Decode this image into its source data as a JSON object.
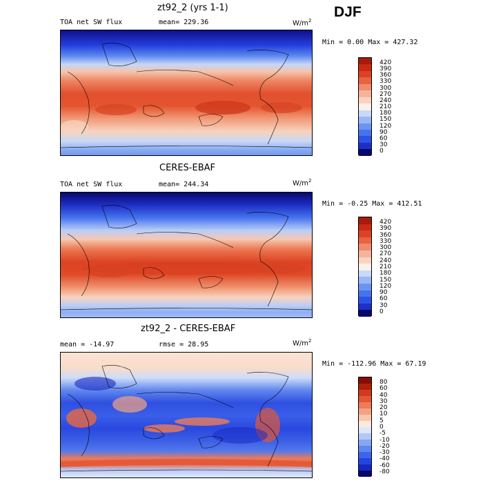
{
  "season": "DJF",
  "colors": {
    "flux_scale": [
      "#08086b",
      "#1e2fc7",
      "#2b52e6",
      "#4674ef",
      "#6b94f2",
      "#9bb7f6",
      "#c8daf9",
      "#f9f1ea",
      "#f8d4c0",
      "#f7b39a",
      "#f28b6e",
      "#e8633f",
      "#dc4226",
      "#c82a16",
      "#a81a0b"
    ],
    "diff_scale": [
      "#08086b",
      "#1628c3",
      "#2545e2",
      "#3b66ec",
      "#5e87f0",
      "#86a7f4",
      "#b3c8f8",
      "#dce7fb",
      "#fbe9dd",
      "#f8c7ae",
      "#f4a283",
      "#ee7c58",
      "#e35736",
      "#d13a1f",
      "#b11f0c",
      "#830f05"
    ]
  },
  "chart_data": [
    {
      "type": "heatmap",
      "title": "zt92_2 (yrs 1-1)",
      "variable_label": "TOA net SW flux",
      "stat_text": "mean= 229.36",
      "units_text": "W/m",
      "units_exp": "2",
      "minmax_text": "Min =    0.00 Max = 427.32",
      "colorbar_ticks": [
        "420",
        "390",
        "360",
        "330",
        "300",
        "270",
        "240",
        "210",
        "180",
        "150",
        "120",
        "90",
        "60",
        "30",
        "0"
      ]
    },
    {
      "type": "heatmap",
      "title": "CERES-EBAF",
      "variable_label": "TOA net SW flux",
      "stat_text": "mean= 244.34",
      "units_text": "W/m",
      "units_exp": "2",
      "minmax_text": "Min =  -0.25 Max = 412.51",
      "colorbar_ticks": [
        "420",
        "390",
        "360",
        "330",
        "300",
        "270",
        "240",
        "210",
        "180",
        "150",
        "120",
        "90",
        "60",
        "30",
        "0"
      ]
    },
    {
      "type": "heatmap",
      "title": "zt92_2 - CERES-EBAF",
      "stat_text": "mean = -14.97",
      "stat2_text": "rmse =  28.95",
      "units_text": "W/m",
      "units_exp": "2",
      "minmax_text": "Min = -112.96 Max =  67.19",
      "colorbar_ticks": [
        "80",
        "60",
        "40",
        "30",
        "20",
        "10",
        "5",
        "0",
        "-5",
        "-10",
        "-20",
        "-30",
        "-40",
        "-60",
        "-80"
      ]
    }
  ]
}
